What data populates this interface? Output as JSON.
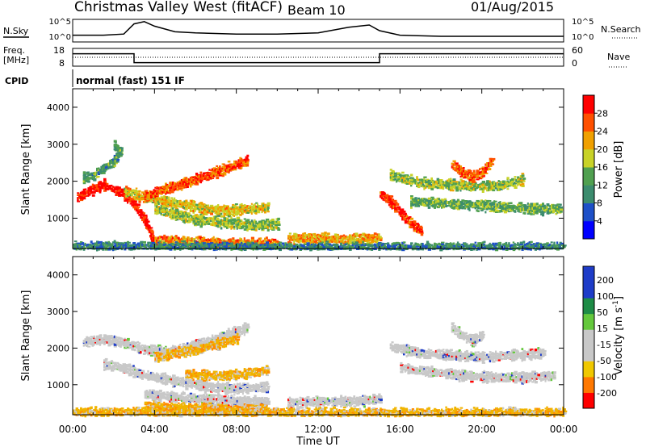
{
  "header": {
    "station": "Christmas Valley West (fitACF)",
    "beam": "Beam 10",
    "date": "01/Aug/2015"
  },
  "top_panels": {
    "nsky_label": "N.Sky",
    "nsearch_label": "N.Search",
    "noise_left_ticks": [
      "10^5",
      "10^0"
    ],
    "noise_right_ticks": [
      "10^5",
      "10^0"
    ],
    "freq_label_1": "Freq.",
    "freq_label_2": "[MHz]",
    "freq_left_ticks": [
      "18",
      "8"
    ],
    "nave_label": "Nave",
    "nave_right_ticks": [
      "60",
      "0"
    ],
    "cpid_label": "CPID",
    "cpid_text": "normal (fast) 151 IF"
  },
  "chart_data": [
    {
      "type": "line",
      "panel": "noise",
      "series": [
        {
          "x": [
            0.0,
            1.5,
            2.5,
            3.0,
            3.5,
            4.0,
            5.0,
            6.0,
            8.0,
            10.0,
            12.0,
            13.5,
            14.5,
            15.0,
            16.0,
            18.0,
            20.0,
            22.0,
            24.0
          ],
          "y": [
            0.3,
            0.3,
            0.35,
            0.8,
            0.9,
            0.7,
            0.45,
            0.4,
            0.35,
            0.35,
            0.4,
            0.65,
            0.75,
            0.5,
            0.3,
            0.25,
            0.25,
            0.25,
            0.25
          ]
        }
      ]
    },
    {
      "type": "line",
      "panel": "frequency_nave",
      "xlim": [
        0,
        24
      ],
      "series": [
        {
          "x": [
            0.0,
            3.0,
            3.0,
            15.0,
            15.0,
            24.0
          ],
          "y": [
            15,
            15,
            10,
            10,
            15,
            15
          ]
        }
      ]
    },
    {
      "type": "heatmap",
      "title": "Power",
      "xlabel": "",
      "ylabel": "Slant Range [km]",
      "xlim": [
        0,
        24
      ],
      "ylim": [
        180,
        4500
      ],
      "x_ticks": [
        "00:00",
        "04:00",
        "08:00",
        "12:00",
        "16:00",
        "20:00",
        "00:00"
      ],
      "y_ticks": [
        "1000",
        "2000",
        "3000",
        "4000"
      ],
      "colorbar": {
        "label": "Power [dB]",
        "ticks": [
          "4",
          "8",
          "12",
          "16",
          "20",
          "24",
          "28"
        ],
        "colors": [
          "#0000ff",
          "#1e50c8",
          "#3c8c6e",
          "#50a050",
          "#c8d228",
          "#f0a000",
          "#ff5000",
          "#ff0000"
        ]
      },
      "bands": [
        {
          "points": [
            [
              0.5,
              2150
            ],
            [
              1.0,
              2200
            ],
            [
              1.5,
              2400
            ],
            [
              2.0,
              2600
            ],
            [
              2.3,
              2850
            ],
            [
              2.0,
              3000
            ]
          ],
          "level": 10
        },
        {
          "points": [
            [
              0.2,
              1600
            ],
            [
              0.8,
              1800
            ],
            [
              1.5,
              1950
            ],
            [
              2.5,
              1700
            ],
            [
              3.0,
              1400
            ],
            [
              3.5,
              1000
            ],
            [
              3.8,
              600
            ],
            [
              4.0,
              320
            ]
          ],
          "level": 28
        },
        {
          "points": [
            [
              2.5,
              1800
            ],
            [
              3.5,
              1600
            ],
            [
              4.5,
              1500
            ],
            [
              5.5,
              1400
            ],
            [
              6.5,
              1300
            ],
            [
              7.5,
              1250
            ],
            [
              8.5,
              1300
            ],
            [
              9.5,
              1350
            ]
          ],
          "level": 18
        },
        {
          "points": [
            [
              4.0,
              1300
            ],
            [
              5.0,
              1150
            ],
            [
              6.0,
              1000
            ],
            [
              7.0,
              950
            ],
            [
              8.0,
              900
            ],
            [
              9.0,
              850
            ],
            [
              10.0,
              900
            ]
          ],
          "level": 14
        },
        {
          "points": [
            [
              3.5,
              1650
            ],
            [
              4.5,
              1850
            ],
            [
              5.5,
              2000
            ],
            [
              6.5,
              2200
            ],
            [
              7.5,
              2400
            ],
            [
              8.5,
              2600
            ]
          ],
          "level": 24
        },
        {
          "points": [
            [
              4.0,
              450
            ],
            [
              5.5,
              420
            ],
            [
              7.0,
              380
            ],
            [
              8.5,
              360
            ],
            [
              10.0,
              360
            ]
          ],
          "level": 22
        },
        {
          "points": [
            [
              10.5,
              500
            ],
            [
              12.0,
              500
            ],
            [
              13.5,
              480
            ],
            [
              15.0,
              500
            ]
          ],
          "level": 20
        },
        {
          "points": [
            [
              15.0,
              1700
            ],
            [
              15.5,
              1500
            ],
            [
              16.0,
              1200
            ],
            [
              16.5,
              900
            ],
            [
              17.0,
              700
            ]
          ],
          "level": 26
        },
        {
          "points": [
            [
              15.5,
              2200
            ],
            [
              17.0,
              2000
            ],
            [
              18.5,
              1950
            ],
            [
              20.0,
              1900
            ],
            [
              21.0,
              1950
            ],
            [
              22.0,
              2100
            ]
          ],
          "level": 14
        },
        {
          "points": [
            [
              16.5,
              1500
            ],
            [
              18.0,
              1450
            ],
            [
              19.5,
              1400
            ],
            [
              21.0,
              1350
            ],
            [
              22.5,
              1300
            ],
            [
              23.8,
              1300
            ]
          ],
          "level": 12
        },
        {
          "points": [
            [
              18.5,
              2500
            ],
            [
              19.0,
              2300
            ],
            [
              19.5,
              2150
            ],
            [
              20.0,
              2300
            ],
            [
              20.5,
              2600
            ]
          ],
          "level": 24
        },
        {
          "points": [
            [
              0.0,
              280
            ],
            [
              6.0,
              260
            ],
            [
              12.0,
              250
            ],
            [
              18.0,
              250
            ],
            [
              24.0,
              250
            ]
          ],
          "level": 8
        }
      ]
    },
    {
      "type": "heatmap",
      "title": "Velocity",
      "xlabel": "Time UT",
      "ylabel": "Slant Range [km]",
      "xlim": [
        0,
        24
      ],
      "ylim": [
        180,
        4500
      ],
      "x_ticks": [
        "00:00",
        "04:00",
        "08:00",
        "12:00",
        "16:00",
        "20:00",
        "00:00"
      ],
      "y_ticks": [
        "1000",
        "2000",
        "3000",
        "4000"
      ],
      "colorbar": {
        "label": "Velocity [m s^-1]",
        "ticks": [
          "200",
          "100",
          "50",
          "15",
          "-15",
          "-50",
          "-100",
          "-200"
        ],
        "colors": [
          "#1e3cc8",
          "#1e8c46",
          "#64c83c",
          "#c8c8c8",
          "#c8c8c8",
          "#f0c800",
          "#ff7800",
          "#ff0000"
        ]
      },
      "bands": [
        {
          "points": [
            [
              0.5,
              2200
            ],
            [
              1.5,
              2300
            ],
            [
              2.5,
              2200
            ],
            [
              3.5,
              2000
            ],
            [
              4.5,
              1950
            ],
            [
              5.5,
              2050
            ],
            [
              6.5,
              2200
            ],
            [
              7.5,
              2400
            ],
            [
              8.5,
              2600
            ]
          ],
          "vel": "gray"
        },
        {
          "points": [
            [
              1.5,
              1600
            ],
            [
              2.5,
              1500
            ],
            [
              3.5,
              1300
            ],
            [
              4.5,
              1200
            ],
            [
              5.5,
              1100
            ],
            [
              6.5,
              1000
            ],
            [
              7.5,
              950
            ],
            [
              8.5,
              950
            ],
            [
              9.5,
              1000
            ]
          ],
          "vel": "gray"
        },
        {
          "points": [
            [
              5.5,
              1350
            ],
            [
              6.5,
              1300
            ],
            [
              7.5,
              1300
            ],
            [
              8.5,
              1350
            ],
            [
              9.5,
              1450
            ]
          ],
          "vel": "orange"
        },
        {
          "points": [
            [
              4.0,
              1800
            ],
            [
              5.0,
              1900
            ],
            [
              6.0,
              2000
            ],
            [
              7.0,
              2150
            ],
            [
              8.0,
              2300
            ]
          ],
          "vel": "orange"
        },
        {
          "points": [
            [
              3.5,
              800
            ],
            [
              5.0,
              700
            ],
            [
              6.5,
              650
            ],
            [
              8.0,
              600
            ],
            [
              9.5,
              600
            ]
          ],
          "vel": "gray"
        },
        {
          "points": [
            [
              3.5,
              450
            ],
            [
              5.0,
              420
            ],
            [
              6.5,
              400
            ],
            [
              8.0,
              380
            ],
            [
              9.5,
              380
            ]
          ],
          "vel": "orange"
        },
        {
          "points": [
            [
              10.5,
              550
            ],
            [
              12.0,
              580
            ],
            [
              13.5,
              600
            ],
            [
              15.0,
              650
            ]
          ],
          "vel": "gray"
        },
        {
          "points": [
            [
              15.5,
              2100
            ],
            [
              17.0,
              1900
            ],
            [
              18.5,
              1850
            ],
            [
              20.0,
              1800
            ],
            [
              21.5,
              1850
            ],
            [
              23.0,
              1900
            ]
          ],
          "vel": "gray"
        },
        {
          "points": [
            [
              16.0,
              1500
            ],
            [
              17.5,
              1400
            ],
            [
              19.0,
              1300
            ],
            [
              20.5,
              1250
            ],
            [
              22.0,
              1250
            ],
            [
              23.5,
              1300
            ]
          ],
          "vel": "gray"
        },
        {
          "points": [
            [
              18.5,
              2600
            ],
            [
              19.0,
              2400
            ],
            [
              19.5,
              2250
            ],
            [
              20.0,
              2400
            ]
          ],
          "vel": "gray"
        },
        {
          "points": [
            [
              0.0,
              300
            ],
            [
              6.0,
              280
            ],
            [
              12.0,
              270
            ],
            [
              18.0,
              270
            ],
            [
              24.0,
              270
            ]
          ],
          "vel": "orange"
        }
      ]
    }
  ],
  "axes": {
    "ylabel": "Slant Range [km]",
    "xlabel": "Time UT",
    "x_ticks": [
      "00:00",
      "04:00",
      "08:00",
      "12:00",
      "16:00",
      "20:00",
      "00:00"
    ],
    "y_ticks": [
      "1000",
      "2000",
      "3000",
      "4000"
    ]
  },
  "power_colorbar_label": "Power [dB]",
  "power_ticks": [
    "4",
    "8",
    "12",
    "16",
    "20",
    "24",
    "28"
  ],
  "velocity_colorbar_label_main": "Velocity [m s",
  "velocity_colorbar_label_exp": "-1",
  "velocity_colorbar_label_end": "]",
  "velocity_ticks": [
    "200",
    "100",
    "50",
    "15",
    "-15",
    "-50",
    "-100",
    "-200"
  ]
}
